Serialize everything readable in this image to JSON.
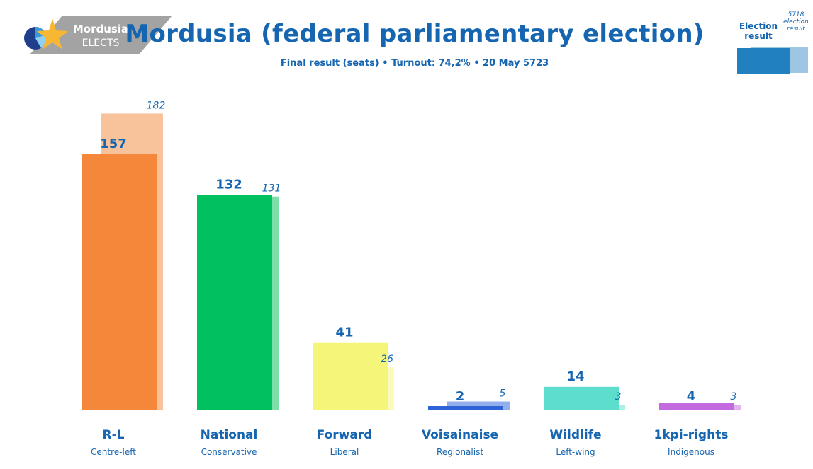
{
  "header": {
    "logo_line1": "Mordusia",
    "logo_line2": "ELECTS",
    "title": "Mordusia (federal parliamentary election)",
    "subtitle": "Final result (seats) • Turnout: 74,2% • 20 May 5723"
  },
  "legend": {
    "current_label": "Election result",
    "previous_label": "5718 election result",
    "current_color": "#2080c0",
    "previous_color": "#9cc6e4"
  },
  "chart_data": {
    "type": "bar",
    "title": "Mordusia (federal parliamentary election)",
    "categories": [
      "R-L",
      "National",
      "Forward",
      "Voisainaise",
      "Wildlife",
      "1kpi-rights"
    ],
    "subcategories": [
      "Centre-left",
      "Conservative",
      "Liberal",
      "Regionalist",
      "Left-wing",
      "Indigenous"
    ],
    "series": [
      {
        "name": "Election result",
        "values": [
          157,
          132,
          41,
          2,
          14,
          4
        ]
      },
      {
        "name": "5718 election result",
        "values": [
          182,
          131,
          26,
          5,
          3,
          3
        ]
      }
    ],
    "colors": [
      "#f4873a",
      "#00c060",
      "#f5f57a",
      "#2f64d8",
      "#5dddcc",
      "#c46ae0"
    ],
    "prev_colors": [
      "#f8c39a",
      "#7fdfa8",
      "#fafabc",
      "#94b0ec",
      "#aeeee5",
      "#e1b4ef"
    ],
    "ylim": [
      0,
      200
    ],
    "xlabel": "",
    "ylabel": "",
    "grid": false
  }
}
